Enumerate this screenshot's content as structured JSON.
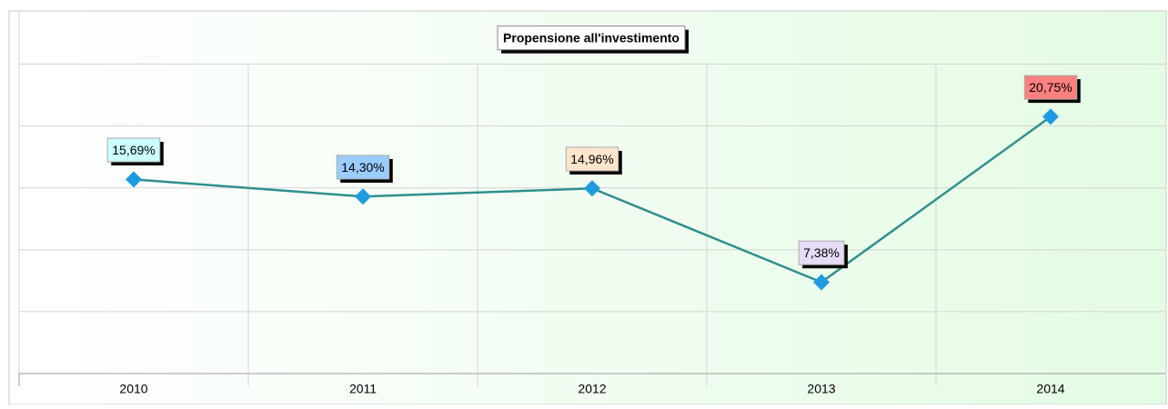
{
  "chart_data": {
    "type": "line",
    "title": "Propensione all'investimento",
    "categories": [
      "2010",
      "2011",
      "2012",
      "2013",
      "2014"
    ],
    "series": [
      {
        "name": "Propensione all'investimento",
        "color": "#2f8f8f",
        "marker_color": "#1e9be0",
        "values": [
          15.69,
          14.3,
          14.96,
          7.38,
          20.75
        ],
        "value_labels": [
          "15,69%",
          "14,30%",
          "14,96%",
          "7,38%",
          "20,75%"
        ],
        "label_colors": [
          "#ccffff",
          "#99ccff",
          "#fde6cc",
          "#e6dcf5",
          "#ff8080"
        ]
      }
    ],
    "ylim": [
      0,
      29.3
    ],
    "yticks": [
      0,
      5,
      10,
      15,
      20,
      25
    ],
    "grid": true
  }
}
